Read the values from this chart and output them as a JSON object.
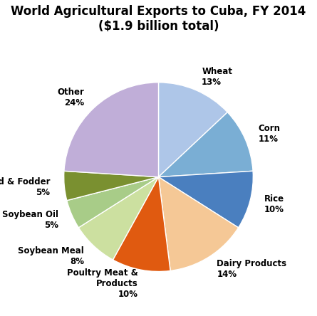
{
  "title": "World Agricultural Exports to Cuba, FY 2014\n($1.9 billion total)",
  "labels": [
    "Wheat",
    "Corn",
    "Rice",
    "Dairy Products",
    "Poultry Meat &\nProducts",
    "Soybean Meal",
    "Soybean Oil",
    "Feed & Fodder",
    "Other"
  ],
  "values": [
    13,
    11,
    10,
    14,
    10,
    8,
    5,
    5,
    24
  ],
  "colors": [
    "#aec6e8",
    "#7aaed4",
    "#4a7fbf",
    "#f5c896",
    "#e05a10",
    "#cce0a0",
    "#a8cc88",
    "#7a9030",
    "#c0aed8"
  ],
  "startangle": 90,
  "title_fontsize": 12,
  "label_fontsize": 8.5
}
